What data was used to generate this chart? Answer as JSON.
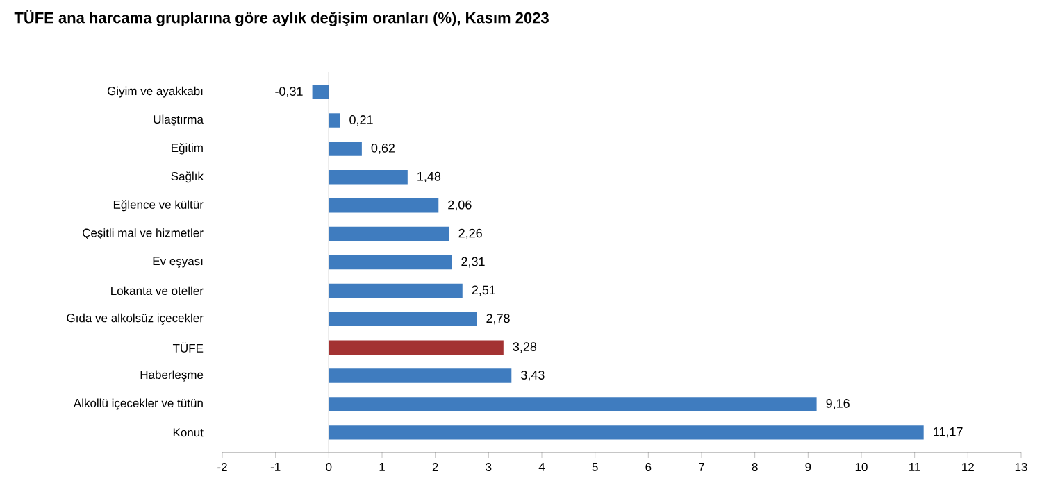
{
  "chart_data": {
    "type": "bar",
    "orientation": "horizontal",
    "title": "TÜFE ana harcama gruplarına göre aylık değişim oranları (%), Kasım 2023",
    "categories": [
      "Giyim ve ayakkabı",
      "Ulaştırma",
      "Eğitim",
      "Sağlık",
      "Eğlence ve kültür",
      "Çeşitli mal ve hizmetler",
      "Ev eşyası",
      "Lokanta ve oteller",
      "Gıda ve alkolsüz içecekler",
      "TÜFE",
      "Haberleşme",
      "Alkollü içecekler ve tütün",
      "Konut"
    ],
    "values": [
      -0.31,
      0.21,
      0.62,
      1.48,
      2.06,
      2.26,
      2.31,
      2.51,
      2.78,
      3.28,
      3.43,
      9.16,
      11.17
    ],
    "value_labels": [
      "-0,31",
      "0,21",
      "0,62",
      "1,48",
      "2,06",
      "2,26",
      "2,31",
      "2,51",
      "2,78",
      "3,28",
      "3,43",
      "9,16",
      "11,17"
    ],
    "colors": [
      "#3f7cbf",
      "#3f7cbf",
      "#3f7cbf",
      "#3f7cbf",
      "#3f7cbf",
      "#3f7cbf",
      "#3f7cbf",
      "#3f7cbf",
      "#3f7cbf",
      "#a33232",
      "#3f7cbf",
      "#3f7cbf",
      "#3f7cbf"
    ],
    "xlim": [
      -2,
      13
    ],
    "xticks": [
      -2,
      -1,
      0,
      1,
      2,
      3,
      4,
      5,
      6,
      7,
      8,
      9,
      10,
      11,
      12,
      13
    ]
  }
}
